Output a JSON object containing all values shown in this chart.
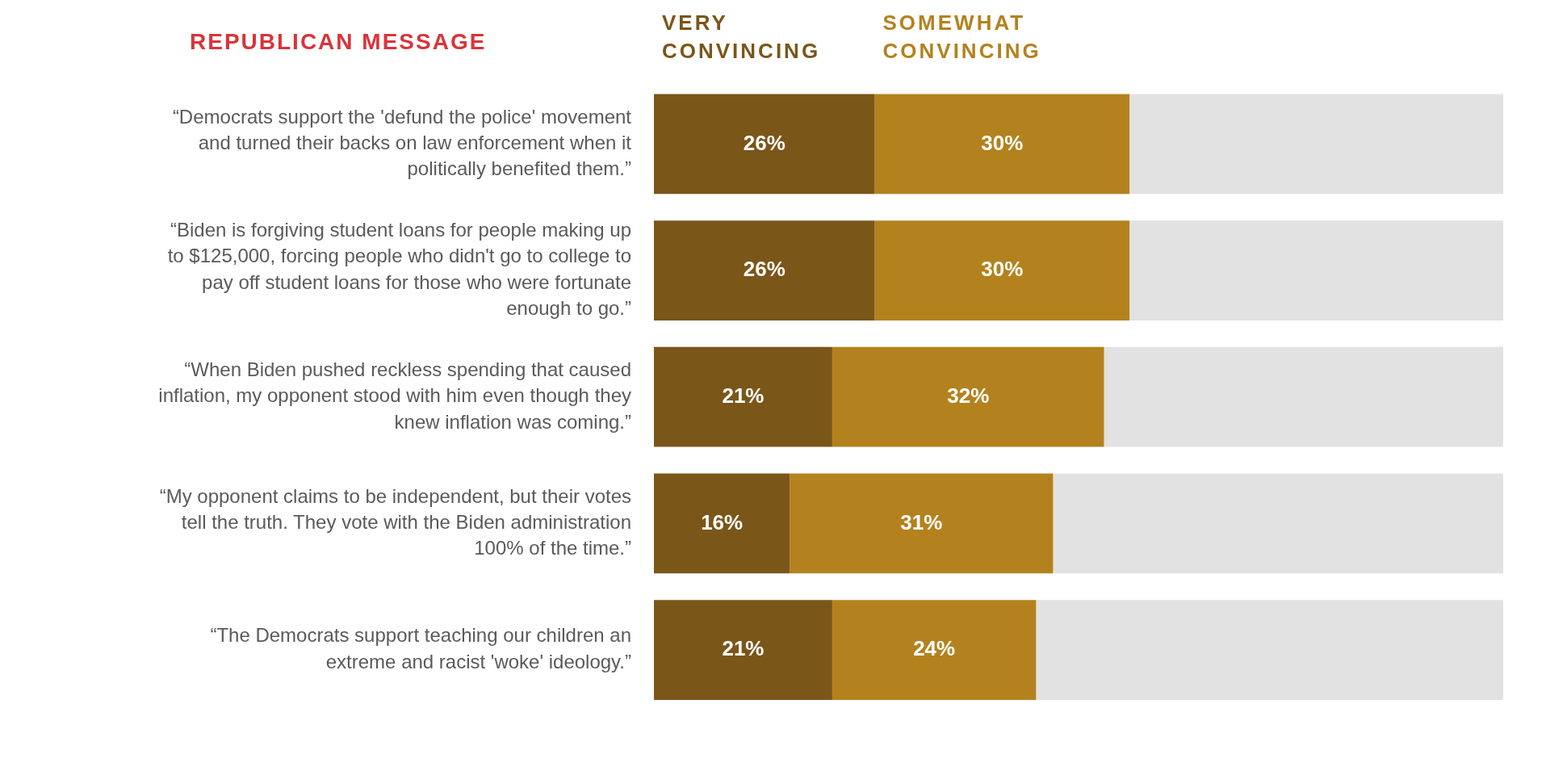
{
  "chart_data": {
    "type": "bar",
    "orientation": "horizontal",
    "stacked": true,
    "title": "REPUBLICAN MESSAGE",
    "categories": [
      "“Democrats support the 'defund the police' movement and turned their backs on law enforcement when it politically benefited them.”",
      "“Biden is forgiving student loans for people making up to $125,000, forcing people who didn't go to college to pay off student loans for those who were fortunate enough to go.”",
      "“When Biden pushed reckless spending that caused inflation, my opponent stood with him even though they knew inflation was coming.”",
      "“My opponent claims to be independent, but their votes tell the truth. They vote with the Biden administration 100% of the time.”",
      "“The Democrats support teaching our children an extreme and racist 'woke' ideology.”"
    ],
    "series": [
      {
        "name": "VERY CONVINCING",
        "color": "#7a5619",
        "values": [
          26,
          26,
          21,
          16,
          21
        ],
        "value_labels": [
          "26%",
          "26%",
          "21%",
          "16%",
          "21%"
        ]
      },
      {
        "name": "SOMEWHAT CONVINCING",
        "color": "#b3821e",
        "values": [
          30,
          30,
          32,
          31,
          24
        ],
        "value_labels": [
          "30%",
          "30%",
          "32%",
          "31%",
          "24%"
        ]
      },
      {
        "color": "#e2e2e2",
        "values": [
          44,
          44,
          47,
          53,
          55
        ]
      }
    ],
    "tick_labels": "y",
    "legend": "top left"
  }
}
